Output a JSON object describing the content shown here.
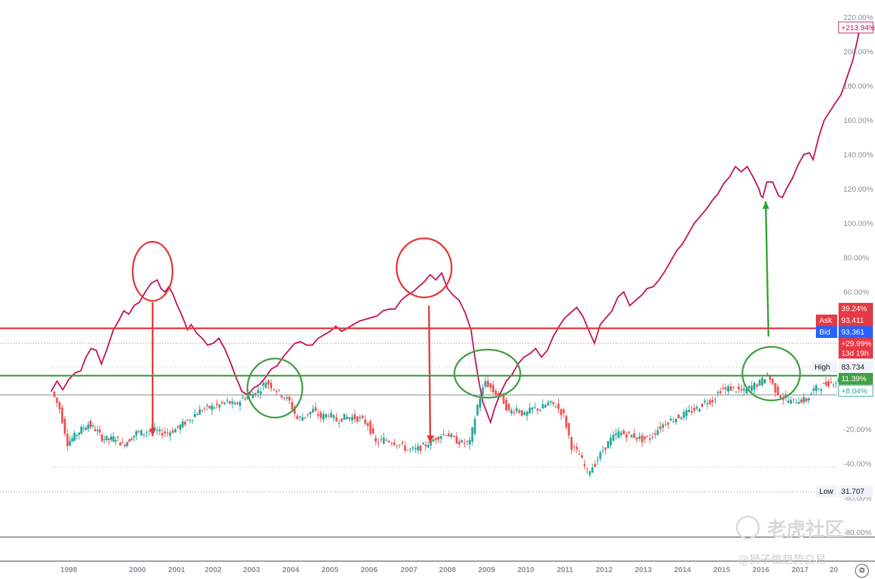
{
  "chart_data": {
    "type": "line",
    "x_ticks": [
      "1998",
      "2000",
      "2001",
      "2002",
      "2003",
      "2004",
      "2005",
      "2006",
      "2007",
      "2008",
      "2009",
      "2010",
      "2011",
      "2012",
      "2013",
      "2014",
      "2015",
      "2016",
      "2017",
      "20"
    ],
    "y_ticks": [
      "220.00%",
      "200.00%",
      "180.00%",
      "160.00%",
      "140.00%",
      "120.00%",
      "100.00%",
      "80.00%",
      "60.00%",
      "40.00%",
      "-20.00%",
      "-40.00%",
      "-60.00%",
      "-80.00%"
    ],
    "y_range_percent": [
      -90,
      220
    ],
    "series": [
      {
        "color": "#c2185b",
        "style": "line",
        "points": [
          [
            1997.55,
            2
          ],
          [
            1997.7,
            8
          ],
          [
            1997.85,
            3
          ],
          [
            1998.0,
            9
          ],
          [
            1998.2,
            13
          ],
          [
            1998.35,
            14
          ],
          [
            1998.5,
            22
          ],
          [
            1998.65,
            27
          ],
          [
            1998.8,
            26
          ],
          [
            1998.95,
            18
          ],
          [
            1999.1,
            26
          ],
          [
            1999.3,
            38
          ],
          [
            1999.45,
            43
          ],
          [
            1999.6,
            49
          ],
          [
            1999.75,
            47
          ],
          [
            1999.9,
            52
          ],
          [
            2000.05,
            54
          ],
          [
            2000.2,
            60
          ],
          [
            2000.35,
            65
          ],
          [
            2000.5,
            67
          ],
          [
            2000.6,
            62
          ],
          [
            2000.7,
            60
          ],
          [
            2000.8,
            63
          ],
          [
            2000.9,
            59
          ],
          [
            2001.0,
            53
          ],
          [
            2001.15,
            46
          ],
          [
            2001.3,
            38
          ],
          [
            2001.4,
            41
          ],
          [
            2001.55,
            36
          ],
          [
            2001.7,
            33
          ],
          [
            2001.85,
            29
          ],
          [
            2002.0,
            30
          ],
          [
            2002.15,
            33
          ],
          [
            2002.3,
            27
          ],
          [
            2002.45,
            19
          ],
          [
            2002.6,
            10
          ],
          [
            2002.75,
            2
          ],
          [
            2002.9,
            0
          ],
          [
            2003.05,
            4
          ],
          [
            2003.2,
            6
          ],
          [
            2003.35,
            10
          ],
          [
            2003.5,
            15
          ],
          [
            2003.65,
            17
          ],
          [
            2003.8,
            22
          ],
          [
            2003.95,
            26
          ],
          [
            2004.1,
            30
          ],
          [
            2004.25,
            31
          ],
          [
            2004.4,
            29
          ],
          [
            2004.55,
            29
          ],
          [
            2004.7,
            33
          ],
          [
            2004.85,
            35
          ],
          [
            2005.0,
            37
          ],
          [
            2005.15,
            40
          ],
          [
            2005.3,
            37
          ],
          [
            2005.45,
            39
          ],
          [
            2005.6,
            41
          ],
          [
            2005.75,
            43
          ],
          [
            2005.9,
            44
          ],
          [
            2006.05,
            45
          ],
          [
            2006.2,
            46
          ],
          [
            2006.35,
            49
          ],
          [
            2006.5,
            50
          ],
          [
            2006.65,
            50
          ],
          [
            2006.8,
            55
          ],
          [
            2006.95,
            58
          ],
          [
            2007.1,
            60
          ],
          [
            2007.25,
            63
          ],
          [
            2007.4,
            66
          ],
          [
            2007.55,
            70
          ],
          [
            2007.7,
            67
          ],
          [
            2007.85,
            71
          ],
          [
            2008.0,
            62
          ],
          [
            2008.15,
            58
          ],
          [
            2008.3,
            55
          ],
          [
            2008.45,
            48
          ],
          [
            2008.6,
            38
          ],
          [
            2008.7,
            22
          ],
          [
            2008.8,
            8
          ],
          [
            2008.9,
            -4
          ],
          [
            2009.0,
            -10
          ],
          [
            2009.1,
            -16
          ],
          [
            2009.2,
            -8
          ],
          [
            2009.35,
            1
          ],
          [
            2009.5,
            8
          ],
          [
            2009.65,
            12
          ],
          [
            2009.8,
            18
          ],
          [
            2009.95,
            22
          ],
          [
            2010.1,
            24
          ],
          [
            2010.25,
            27
          ],
          [
            2010.4,
            22
          ],
          [
            2010.55,
            26
          ],
          [
            2010.7,
            34
          ],
          [
            2010.85,
            40
          ],
          [
            2011.0,
            45
          ],
          [
            2011.15,
            48
          ],
          [
            2011.3,
            51
          ],
          [
            2011.45,
            46
          ],
          [
            2011.6,
            38
          ],
          [
            2011.75,
            30
          ],
          [
            2011.9,
            41
          ],
          [
            2012.05,
            45
          ],
          [
            2012.2,
            49
          ],
          [
            2012.35,
            57
          ],
          [
            2012.5,
            60
          ],
          [
            2012.65,
            52
          ],
          [
            2012.8,
            55
          ],
          [
            2012.95,
            58
          ],
          [
            2013.1,
            62
          ],
          [
            2013.25,
            63
          ],
          [
            2013.4,
            67
          ],
          [
            2013.55,
            72
          ],
          [
            2013.7,
            78
          ],
          [
            2013.85,
            84
          ],
          [
            2014.0,
            88
          ],
          [
            2014.15,
            94
          ],
          [
            2014.3,
            100
          ],
          [
            2014.45,
            104
          ],
          [
            2014.6,
            108
          ],
          [
            2014.75,
            113
          ],
          [
            2014.9,
            117
          ],
          [
            2015.05,
            123
          ],
          [
            2015.2,
            127
          ],
          [
            2015.35,
            133
          ],
          [
            2015.5,
            130
          ],
          [
            2015.65,
            133
          ],
          [
            2015.8,
            127
          ],
          [
            2015.95,
            120
          ],
          [
            2016.0,
            116
          ],
          [
            2016.05,
            115
          ],
          [
            2016.15,
            124
          ],
          [
            2016.3,
            124
          ],
          [
            2016.45,
            116
          ],
          [
            2016.55,
            115
          ],
          [
            2016.65,
            120
          ],
          [
            2016.8,
            126
          ],
          [
            2016.95,
            134
          ],
          [
            2017.1,
            140
          ],
          [
            2017.25,
            141
          ],
          [
            2017.35,
            137
          ],
          [
            2017.5,
            150
          ],
          [
            2017.65,
            160
          ],
          [
            2017.8,
            165
          ],
          [
            2017.95,
            170
          ],
          [
            2018.1,
            175
          ],
          [
            2018.25,
            185
          ],
          [
            2018.4,
            195
          ],
          [
            2018.5,
            205
          ],
          [
            2018.58,
            214
          ]
        ]
      }
    ],
    "candles_color_up": "#26a69a",
    "candles_color_down": "#ef5350",
    "candle_points": [
      [
        1997.6,
        2
      ],
      [
        1997.8,
        -8
      ],
      [
        1998.0,
        -28
      ],
      [
        1998.2,
        -24
      ],
      [
        1998.4,
        -20
      ],
      [
        1998.6,
        -17
      ],
      [
        1998.8,
        -20
      ],
      [
        1999.0,
        -25
      ],
      [
        1999.2,
        -26
      ],
      [
        1999.4,
        -25
      ],
      [
        1999.6,
        -29
      ],
      [
        1999.8,
        -26
      ],
      [
        2000.0,
        -22
      ],
      [
        2000.2,
        -22
      ],
      [
        2000.4,
        -20
      ],
      [
        2000.6,
        -22
      ],
      [
        2000.8,
        -22
      ],
      [
        2001.0,
        -20
      ],
      [
        2001.2,
        -17
      ],
      [
        2001.4,
        -14
      ],
      [
        2001.6,
        -10
      ],
      [
        2001.8,
        -8
      ],
      [
        2002.0,
        -7
      ],
      [
        2002.2,
        -6
      ],
      [
        2002.4,
        -4
      ],
      [
        2002.6,
        -6
      ],
      [
        2002.8,
        -2
      ],
      [
        2003.0,
        0
      ],
      [
        2003.2,
        2
      ],
      [
        2003.4,
        8
      ],
      [
        2003.6,
        4
      ],
      [
        2003.8,
        0
      ],
      [
        2004.0,
        -4
      ],
      [
        2004.2,
        -14
      ],
      [
        2004.4,
        -12
      ],
      [
        2004.6,
        -9
      ],
      [
        2004.8,
        -13
      ],
      [
        2005.0,
        -11
      ],
      [
        2005.2,
        -15
      ],
      [
        2005.4,
        -13
      ],
      [
        2005.6,
        -13
      ],
      [
        2005.8,
        -14
      ],
      [
        2006.0,
        -17
      ],
      [
        2006.2,
        -28
      ],
      [
        2006.4,
        -26
      ],
      [
        2006.6,
        -27
      ],
      [
        2006.8,
        -29
      ],
      [
        2007.0,
        -32
      ],
      [
        2007.2,
        -32
      ],
      [
        2007.4,
        -30
      ],
      [
        2007.6,
        -27
      ],
      [
        2007.8,
        -24
      ],
      [
        2008.0,
        -22
      ],
      [
        2008.2,
        -26
      ],
      [
        2008.4,
        -28
      ],
      [
        2008.6,
        -28
      ],
      [
        2008.8,
        -6
      ],
      [
        2009.0,
        8
      ],
      [
        2009.2,
        2
      ],
      [
        2009.4,
        -1
      ],
      [
        2009.6,
        -10
      ],
      [
        2009.8,
        -8
      ],
      [
        2010.0,
        -12
      ],
      [
        2010.2,
        -8
      ],
      [
        2010.4,
        -8
      ],
      [
        2010.6,
        -5
      ],
      [
        2010.8,
        -6
      ],
      [
        2011.0,
        -12
      ],
      [
        2011.2,
        -30
      ],
      [
        2011.4,
        -35
      ],
      [
        2011.6,
        -45
      ],
      [
        2011.8,
        -40
      ],
      [
        2012.0,
        -32
      ],
      [
        2012.2,
        -26
      ],
      [
        2012.4,
        -22
      ],
      [
        2012.6,
        -23
      ],
      [
        2012.8,
        -24
      ],
      [
        2013.0,
        -26
      ],
      [
        2013.2,
        -25
      ],
      [
        2013.4,
        -20
      ],
      [
        2013.6,
        -16
      ],
      [
        2013.8,
        -14
      ],
      [
        2014.0,
        -12
      ],
      [
        2014.2,
        -10
      ],
      [
        2014.4,
        -8
      ],
      [
        2014.6,
        -4
      ],
      [
        2014.8,
        -3
      ],
      [
        2015.0,
        3
      ],
      [
        2015.2,
        4
      ],
      [
        2015.4,
        3
      ],
      [
        2015.6,
        2
      ],
      [
        2015.8,
        5
      ],
      [
        2016.0,
        7
      ],
      [
        2016.2,
        12
      ],
      [
        2016.4,
        3
      ],
      [
        2016.6,
        -2
      ],
      [
        2016.8,
        -4
      ],
      [
        2017.0,
        -3
      ],
      [
        2017.2,
        -3
      ],
      [
        2017.4,
        3
      ],
      [
        2017.6,
        5
      ],
      [
        2017.8,
        7
      ],
      [
        2018.0,
        8
      ],
      [
        2018.2,
        9
      ],
      [
        2018.45,
        11
      ]
    ],
    "horizontal_lines": [
      {
        "role": "resistance",
        "color": "#e53945"
      },
      {
        "role": "support",
        "color": "#43a047"
      }
    ],
    "annotations": {
      "red_circles": [
        2000.4,
        2007.4
      ],
      "green_circles": [
        2003.6,
        2009.3,
        2016.3
      ],
      "arrows_down": [
        2000.4,
        2007.6
      ],
      "arrows_up": [
        2016.2
      ]
    },
    "price_tags": [
      {
        "key": "top_pct",
        "text": "+213.94%",
        "color": "#c2185b",
        "style": "outline"
      },
      {
        "key": "pct",
        "text": "39.24%",
        "color": "#e53945",
        "style": "fill"
      },
      {
        "key": "ask",
        "label": "Ask",
        "text": "93.411",
        "color": "#e53945",
        "style": "fill"
      },
      {
        "key": "bid",
        "label": "Bid",
        "text": "93.361",
        "color": "#2962ff",
        "style": "fill"
      },
      {
        "key": "change",
        "text": "+29.99%",
        "sub": "13d 19h",
        "color": "#e53945",
        "style": "fill"
      },
      {
        "key": "high",
        "label": "High",
        "text": "83.734",
        "color": "#f0f3fa",
        "style": "light"
      },
      {
        "key": "green_pct",
        "text": "11.39%",
        "color": "#43a047",
        "style": "fill"
      },
      {
        "key": "green_pct2",
        "text": "+8.04%",
        "color": "#26a69a",
        "style": "outline"
      },
      {
        "key": "low",
        "label": "Low",
        "text": "31.707",
        "color": "#f0f3fa",
        "style": "light"
      }
    ],
    "grid": false
  },
  "watermark": {
    "brand": "老虎社区",
    "author": "@狮子做趋势交易"
  },
  "settings_icon": "gear-icon"
}
